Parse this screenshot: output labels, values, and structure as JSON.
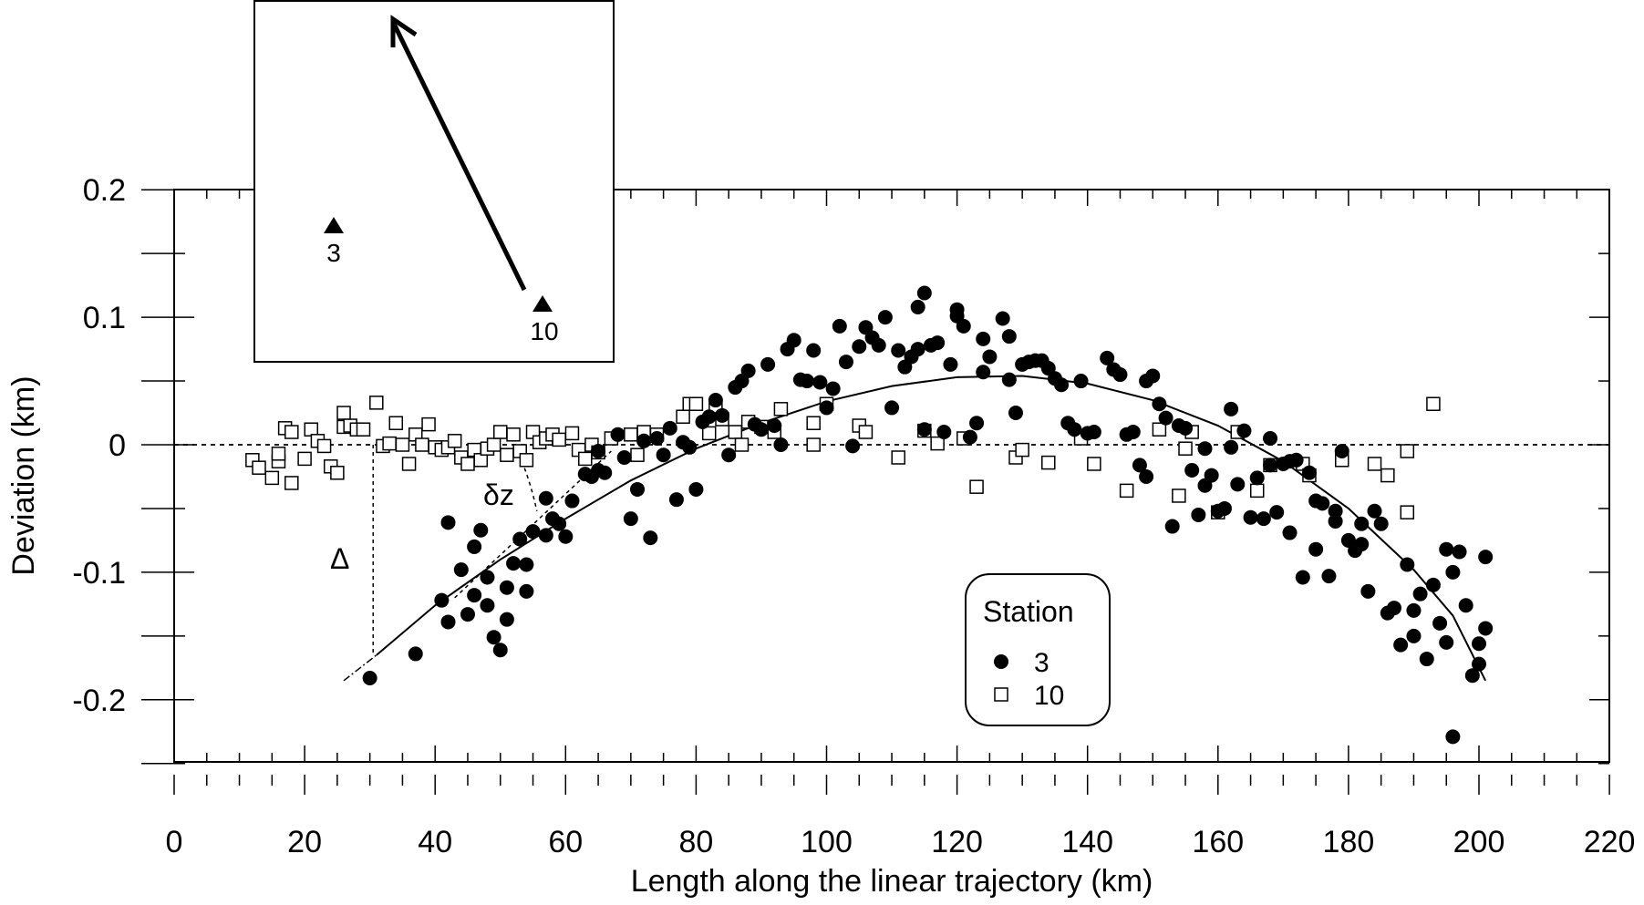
{
  "chart_data": {
    "type": "scatter",
    "title": "",
    "xlabel": "Length along the linear trajectory (km)",
    "ylabel": "Deviation (km)",
    "xlim": [
      0,
      220
    ],
    "ylim": [
      -0.25,
      0.2
    ],
    "x_ticks": [
      0,
      20,
      40,
      60,
      80,
      100,
      120,
      140,
      160,
      180,
      200,
      220
    ],
    "x_tick_labels": [
      "0",
      "20",
      "40",
      "60",
      "80",
      "100",
      "120",
      "140",
      "160",
      "180",
      "200",
      "220"
    ],
    "y_ticks": [
      -0.2,
      -0.1,
      0,
      0.1,
      0.2
    ],
    "y_tick_labels": [
      "-0.2",
      "-0.1",
      "0",
      "0.1",
      "0.2"
    ],
    "grid": false,
    "legend": {
      "title": "Station",
      "position": "lower-right",
      "entries": [
        "3",
        "10"
      ]
    },
    "reference_line": {
      "y": 0,
      "style": "dashed"
    },
    "annotations": {
      "delta": "Δ",
      "delta_z": "δz"
    },
    "fit_curve": {
      "style": "solid",
      "points": [
        [
          31,
          -0.165
        ],
        [
          40,
          -0.126
        ],
        [
          50,
          -0.09
        ],
        [
          60,
          -0.058
        ],
        [
          70,
          -0.028
        ],
        [
          80,
          -0.003
        ],
        [
          90,
          0.017
        ],
        [
          100,
          0.034
        ],
        [
          110,
          0.046
        ],
        [
          120,
          0.053
        ],
        [
          130,
          0.054
        ],
        [
          140,
          0.048
        ],
        [
          150,
          0.035
        ],
        [
          160,
          0.015
        ],
        [
          170,
          -0.013
        ],
        [
          180,
          -0.05
        ],
        [
          190,
          -0.098
        ],
        [
          196,
          -0.134
        ],
        [
          201,
          -0.185
        ]
      ]
    },
    "extrapolation": {
      "style": "dash-dot",
      "points": [
        [
          26,
          -0.185
        ],
        [
          31,
          -0.165
        ]
      ]
    },
    "series": [
      {
        "name": "3",
        "marker": "filled-circle",
        "points": [
          [
            30,
            -0.183
          ],
          [
            37,
            -0.164
          ],
          [
            41,
            -0.122
          ],
          [
            42,
            -0.139
          ],
          [
            42,
            -0.061
          ],
          [
            44,
            -0.098
          ],
          [
            45,
            -0.133
          ],
          [
            46,
            -0.118
          ],
          [
            46,
            -0.08
          ],
          [
            47,
            -0.067
          ],
          [
            48,
            -0.104
          ],
          [
            48,
            -0.126
          ],
          [
            49,
            -0.151
          ],
          [
            50,
            -0.161
          ],
          [
            51,
            -0.137
          ],
          [
            51,
            -0.112
          ],
          [
            52,
            -0.093
          ],
          [
            53,
            -0.074
          ],
          [
            54,
            -0.094
          ],
          [
            54,
            -0.115
          ],
          [
            55,
            -0.068
          ],
          [
            57,
            -0.071
          ],
          [
            57,
            -0.042
          ],
          [
            58,
            -0.058
          ],
          [
            59,
            -0.062
          ],
          [
            60,
            -0.072
          ],
          [
            61,
            -0.044
          ],
          [
            63,
            -0.023
          ],
          [
            64,
            -0.025
          ],
          [
            65,
            -0.005
          ],
          [
            65,
            -0.02
          ],
          [
            66,
            -0.022
          ],
          [
            68,
            0.008
          ],
          [
            69,
            -0.01
          ],
          [
            70,
            -0.058
          ],
          [
            71,
            -0.035
          ],
          [
            72,
            0.003
          ],
          [
            73,
            -0.073
          ],
          [
            74,
            0.005
          ],
          [
            75,
            -0.008
          ],
          [
            76,
            0.013
          ],
          [
            77,
            -0.043
          ],
          [
            78,
            0.002
          ],
          [
            79,
            -0.002
          ],
          [
            80,
            -0.035
          ],
          [
            81,
            0.018
          ],
          [
            82,
            0.022
          ],
          [
            83,
            0.035
          ],
          [
            84,
            0.023
          ],
          [
            85,
            -0.008
          ],
          [
            86,
            0.045
          ],
          [
            87,
            0.05
          ],
          [
            88,
            0.058
          ],
          [
            89,
            0.016
          ],
          [
            90,
            0.012
          ],
          [
            91,
            0.063
          ],
          [
            92,
            0.015
          ],
          [
            93,
            0.0
          ],
          [
            94,
            0.075
          ],
          [
            95,
            0.082
          ],
          [
            96,
            0.051
          ],
          [
            97,
            0.05
          ],
          [
            98,
            0.074
          ],
          [
            99,
            0.049
          ],
          [
            100,
            0.029
          ],
          [
            101,
            0.044
          ],
          [
            102,
            0.093
          ],
          [
            103,
            0.065
          ],
          [
            104,
            -0.001
          ],
          [
            105,
            0.077
          ],
          [
            106,
            0.092
          ],
          [
            107,
            0.084
          ],
          [
            108,
            0.078
          ],
          [
            109,
            0.1
          ],
          [
            110,
            0.029
          ],
          [
            111,
            0.074
          ],
          [
            112,
            0.061
          ],
          [
            113,
            0.069
          ],
          [
            114,
            0.075
          ],
          [
            114,
            0.108
          ],
          [
            115,
            0.012
          ],
          [
            115,
            0.119
          ],
          [
            116,
            0.078
          ],
          [
            117,
            0.08
          ],
          [
            118,
            0.01
          ],
          [
            119,
            0.063
          ],
          [
            120,
            0.101
          ],
          [
            120,
            0.106
          ],
          [
            121,
            0.093
          ],
          [
            122,
            0.006
          ],
          [
            123,
            0.017
          ],
          [
            124,
            0.057
          ],
          [
            124,
            0.083
          ],
          [
            125,
            0.069
          ],
          [
            127,
            0.099
          ],
          [
            128,
            0.051
          ],
          [
            128,
            0.085
          ],
          [
            129,
            0.025
          ],
          [
            130,
            0.063
          ],
          [
            131,
            0.065
          ],
          [
            132,
            0.066
          ],
          [
            133,
            0.066
          ],
          [
            134,
            0.06
          ],
          [
            135,
            0.052
          ],
          [
            136,
            0.047
          ],
          [
            137,
            0.017
          ],
          [
            138,
            0.012
          ],
          [
            139,
            0.05
          ],
          [
            140,
            0.009
          ],
          [
            141,
            0.01
          ],
          [
            143,
            0.068
          ],
          [
            144,
            0.059
          ],
          [
            145,
            0.055
          ],
          [
            146,
            0.008
          ],
          [
            147,
            0.01
          ],
          [
            148,
            -0.016
          ],
          [
            149,
            -0.025
          ],
          [
            149,
            0.05
          ],
          [
            150,
            0.054
          ],
          [
            151,
            0.032
          ],
          [
            152,
            0.021
          ],
          [
            153,
            -0.064
          ],
          [
            154,
            0.015
          ],
          [
            155,
            0.013
          ],
          [
            156,
            -0.02
          ],
          [
            157,
            -0.055
          ],
          [
            158,
            -0.032
          ],
          [
            158,
            -0.003
          ],
          [
            159,
            -0.024
          ],
          [
            160,
            -0.052
          ],
          [
            161,
            -0.05
          ],
          [
            162,
            0.028
          ],
          [
            162,
            -0.002
          ],
          [
            163,
            -0.031
          ],
          [
            164,
            0.011
          ],
          [
            165,
            -0.057
          ],
          [
            166,
            -0.026
          ],
          [
            167,
            -0.058
          ],
          [
            168,
            0.005
          ],
          [
            168,
            -0.016
          ],
          [
            169,
            -0.053
          ],
          [
            170,
            -0.015
          ],
          [
            171,
            -0.069
          ],
          [
            171,
            -0.013
          ],
          [
            172,
            -0.012
          ],
          [
            173,
            -0.104
          ],
          [
            174,
            -0.022
          ],
          [
            175,
            -0.082
          ],
          [
            175,
            -0.044
          ],
          [
            176,
            -0.046
          ],
          [
            177,
            -0.103
          ],
          [
            178,
            -0.06
          ],
          [
            178,
            -0.052
          ],
          [
            179,
            -0.005
          ],
          [
            180,
            -0.075
          ],
          [
            181,
            -0.083
          ],
          [
            182,
            -0.078
          ],
          [
            182,
            -0.062
          ],
          [
            183,
            -0.115
          ],
          [
            184,
            -0.052
          ],
          [
            185,
            -0.062
          ],
          [
            186,
            -0.132
          ],
          [
            187,
            -0.128
          ],
          [
            188,
            -0.157
          ],
          [
            189,
            -0.094
          ],
          [
            190,
            -0.13
          ],
          [
            190,
            -0.15
          ],
          [
            191,
            -0.117
          ],
          [
            192,
            -0.168
          ],
          [
            193,
            -0.11
          ],
          [
            194,
            -0.14
          ],
          [
            195,
            -0.082
          ],
          [
            195,
            -0.155
          ],
          [
            196,
            -0.1
          ],
          [
            196,
            -0.229
          ],
          [
            197,
            -0.084
          ],
          [
            198,
            -0.126
          ],
          [
            199,
            -0.181
          ],
          [
            200,
            -0.156
          ],
          [
            200,
            -0.172
          ],
          [
            201,
            -0.144
          ],
          [
            201,
            -0.088
          ]
        ]
      },
      {
        "name": "10",
        "marker": "open-square",
        "points": [
          [
            12,
            -0.012
          ],
          [
            13,
            -0.018
          ],
          [
            15,
            -0.026
          ],
          [
            16,
            -0.013
          ],
          [
            16,
            -0.007
          ],
          [
            17,
            0.013
          ],
          [
            18,
            -0.03
          ],
          [
            18,
            0.01
          ],
          [
            20,
            -0.011
          ],
          [
            21,
            0.012
          ],
          [
            22,
            0.003
          ],
          [
            23,
            -0.001
          ],
          [
            24,
            -0.017
          ],
          [
            25,
            -0.022
          ],
          [
            26,
            0.025
          ],
          [
            26,
            0.014
          ],
          [
            27,
            0.015
          ],
          [
            28,
            0.012
          ],
          [
            29,
            0.012
          ],
          [
            31,
            0.033
          ],
          [
            32,
            -0.001
          ],
          [
            33,
            0.001
          ],
          [
            34,
            0.017
          ],
          [
            35,
            0.0
          ],
          [
            36,
            -0.015
          ],
          [
            37,
            0.008
          ],
          [
            38,
            0.0
          ],
          [
            39,
            0.016
          ],
          [
            40,
            -0.002
          ],
          [
            41,
            -0.004
          ],
          [
            42,
            -0.002
          ],
          [
            43,
            0.003
          ],
          [
            44,
            -0.01
          ],
          [
            45,
            -0.015
          ],
          [
            46,
            -0.004
          ],
          [
            47,
            -0.012
          ],
          [
            48,
            -0.003
          ],
          [
            49,
            0.0
          ],
          [
            50,
            0.01
          ],
          [
            51,
            -0.008
          ],
          [
            52,
            0.008
          ],
          [
            53,
            -0.005
          ],
          [
            54,
            -0.012
          ],
          [
            55,
            0.01
          ],
          [
            56,
            0.002
          ],
          [
            57,
            0.005
          ],
          [
            58,
            0.008
          ],
          [
            59,
            0.004
          ],
          [
            61,
            0.009
          ],
          [
            62,
            -0.004
          ],
          [
            63,
            -0.011
          ],
          [
            64,
            0.0
          ],
          [
            65,
            -0.006
          ],
          [
            67,
            0.005
          ],
          [
            70,
            0.008
          ],
          [
            71,
            -0.008
          ],
          [
            72,
            0.01
          ],
          [
            74,
            0.008
          ],
          [
            78,
            0.022
          ],
          [
            79,
            0.032
          ],
          [
            80,
            0.032
          ],
          [
            82,
            0.009
          ],
          [
            83,
            0.03
          ],
          [
            84,
            0.02
          ],
          [
            86,
            0.01
          ],
          [
            87,
            0.0
          ],
          [
            88,
            0.018
          ],
          [
            90,
            0.014
          ],
          [
            92,
            0.01
          ],
          [
            93,
            0.028
          ],
          [
            98,
            0.0
          ],
          [
            98,
            0.017
          ],
          [
            100,
            0.032
          ],
          [
            105,
            0.015
          ],
          [
            106,
            0.01
          ],
          [
            111,
            -0.01
          ],
          [
            115,
            0.011
          ],
          [
            117,
            0.001
          ],
          [
            121,
            0.005
          ],
          [
            123,
            -0.033
          ],
          [
            129,
            -0.01
          ],
          [
            130,
            -0.004
          ],
          [
            134,
            -0.014
          ],
          [
            139,
            0.005
          ],
          [
            141,
            -0.015
          ],
          [
            146,
            -0.036
          ],
          [
            151,
            0.012
          ],
          [
            154,
            -0.04
          ],
          [
            155,
            -0.003
          ],
          [
            156,
            0.01
          ],
          [
            160,
            -0.053
          ],
          [
            163,
            0.01
          ],
          [
            166,
            -0.036
          ],
          [
            168,
            -0.016
          ],
          [
            173,
            -0.015
          ],
          [
            174,
            -0.024
          ],
          [
            179,
            -0.012
          ],
          [
            184,
            -0.015
          ],
          [
            186,
            -0.024
          ],
          [
            189,
            -0.005
          ],
          [
            189,
            -0.053
          ],
          [
            193,
            0.032
          ]
        ]
      }
    ]
  },
  "inset": {
    "stations": [
      {
        "label": "3"
      },
      {
        "label": "10"
      }
    ]
  }
}
